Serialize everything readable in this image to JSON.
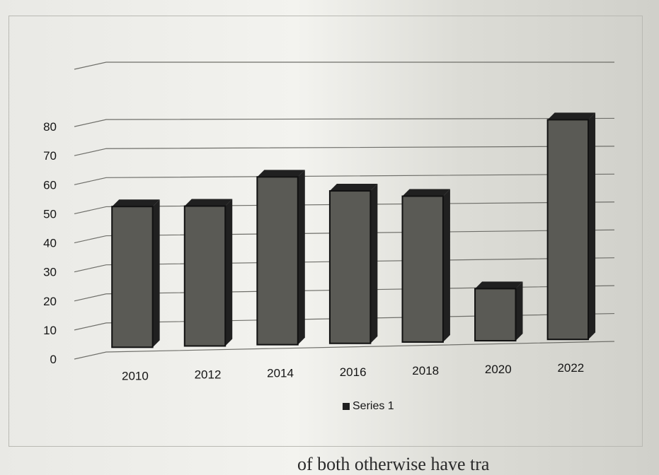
{
  "chart_data": {
    "type": "bar",
    "categories": [
      "2010",
      "2012",
      "2014",
      "2016",
      "2018",
      "2020",
      "2022"
    ],
    "series": [
      {
        "name": "Series 1",
        "values": [
          50,
          50,
          60,
          55,
          53,
          20,
          80
        ]
      }
    ],
    "y_ticks": [
      "0",
      "10",
      "20",
      "30",
      "40",
      "50",
      "60",
      "70",
      "80"
    ],
    "ylim": [
      0,
      90
    ],
    "grid": true,
    "legend_position": "bottom",
    "bar_color": "#5a5a55",
    "bar_side_color": "#202020"
  },
  "legend": {
    "label": "Series 1"
  },
  "footer": {
    "text": "of both otherwise have tra"
  }
}
